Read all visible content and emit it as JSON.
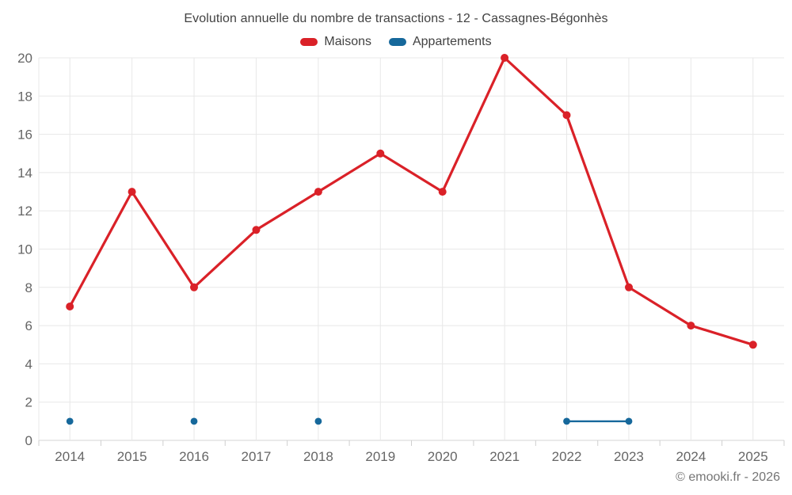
{
  "header": {
    "title": "Evolution annuelle du nombre de transactions - 12 - Cassagnes-Bégonhès"
  },
  "legend": {
    "items": [
      {
        "id": "maisons",
        "label": "Maisons",
        "color": "#da2128"
      },
      {
        "id": "appartements",
        "label": "Appartements",
        "color": "#16689b"
      }
    ]
  },
  "footer": {
    "copyright": "© emooki.fr - 2026"
  },
  "colors": {
    "background": "#ffffff",
    "title_text": "#424242",
    "tick_label": "#666666",
    "grid": "#e8e8e8",
    "axis_line": "#d4d4d4",
    "tick_mark": "#cfcfcf",
    "maisons": "#da2128",
    "appartements": "#16689b"
  },
  "chart_data": {
    "type": "line",
    "title": "Evolution annuelle du nombre de transactions - 12 - Cassagnes-Bégonhès",
    "categories": [
      "2014",
      "2015",
      "2016",
      "2017",
      "2018",
      "2019",
      "2020",
      "2021",
      "2022",
      "2023",
      "2024",
      "2025"
    ],
    "series": [
      {
        "name": "Maisons",
        "color": "#da2128",
        "values": [
          7,
          13,
          8,
          11,
          13,
          15,
          13,
          20,
          17,
          8,
          6,
          5
        ]
      },
      {
        "name": "Appartements",
        "color": "#16689b",
        "values": [
          1,
          null,
          1,
          null,
          1,
          null,
          null,
          null,
          1,
          1,
          null,
          null
        ]
      }
    ],
    "xlabel": "",
    "ylabel": "",
    "ylim": [
      0,
      20
    ],
    "ytick_step": 2,
    "grid": true,
    "legend_position": "top"
  }
}
